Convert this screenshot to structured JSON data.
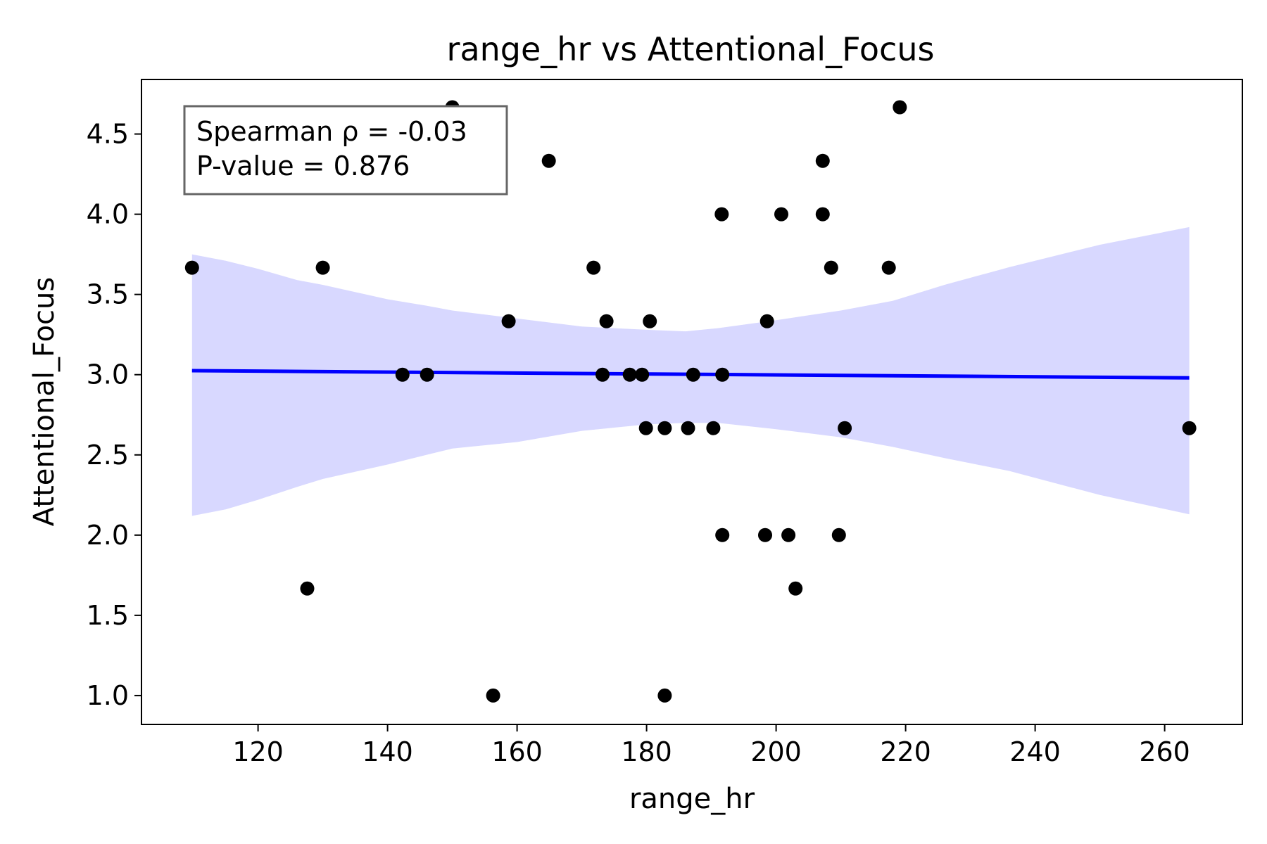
{
  "chart_data": {
    "type": "scatter",
    "title": "range_hr vs Attentional_Focus",
    "xlabel": "range_hr",
    "ylabel": "Attentional_Focus",
    "xlim": [
      102,
      272
    ],
    "ylim": [
      0.82,
      4.84
    ],
    "x_ticks": [
      120,
      140,
      160,
      180,
      200,
      220,
      240,
      260
    ],
    "y_ticks": [
      1.0,
      1.5,
      2.0,
      2.5,
      3.0,
      3.5,
      4.0,
      4.5
    ],
    "grid": false,
    "points": [
      {
        "x": 109.8,
        "y": 3.667
      },
      {
        "x": 130.0,
        "y": 3.667
      },
      {
        "x": 127.6,
        "y": 1.667
      },
      {
        "x": 142.3,
        "y": 3.0
      },
      {
        "x": 146.1,
        "y": 3.0
      },
      {
        "x": 150.0,
        "y": 4.667
      },
      {
        "x": 156.3,
        "y": 1.0
      },
      {
        "x": 158.7,
        "y": 3.333
      },
      {
        "x": 164.9,
        "y": 4.333
      },
      {
        "x": 171.8,
        "y": 3.667
      },
      {
        "x": 173.2,
        "y": 3.0
      },
      {
        "x": 173.8,
        "y": 3.333
      },
      {
        "x": 177.4,
        "y": 3.0
      },
      {
        "x": 179.3,
        "y": 3.0
      },
      {
        "x": 179.9,
        "y": 2.667
      },
      {
        "x": 180.5,
        "y": 3.333
      },
      {
        "x": 182.8,
        "y": 2.667
      },
      {
        "x": 182.8,
        "y": 1.0
      },
      {
        "x": 186.4,
        "y": 2.667
      },
      {
        "x": 187.2,
        "y": 3.0
      },
      {
        "x": 190.3,
        "y": 2.667
      },
      {
        "x": 191.6,
        "y": 4.0
      },
      {
        "x": 191.7,
        "y": 3.0
      },
      {
        "x": 191.7,
        "y": 2.0
      },
      {
        "x": 198.3,
        "y": 2.0
      },
      {
        "x": 198.6,
        "y": 3.333
      },
      {
        "x": 200.8,
        "y": 4.0
      },
      {
        "x": 201.9,
        "y": 2.0
      },
      {
        "x": 203.0,
        "y": 1.667
      },
      {
        "x": 207.2,
        "y": 4.333
      },
      {
        "x": 207.2,
        "y": 4.0
      },
      {
        "x": 208.5,
        "y": 3.667
      },
      {
        "x": 209.7,
        "y": 2.0
      },
      {
        "x": 210.6,
        "y": 2.667
      },
      {
        "x": 217.4,
        "y": 3.667
      },
      {
        "x": 219.1,
        "y": 4.667
      },
      {
        "x": 263.8,
        "y": 2.667
      }
    ],
    "regression": {
      "x": [
        109.8,
        263.8
      ],
      "y": [
        3.025,
        2.98
      ]
    },
    "confidence_band": {
      "x": [
        109.8,
        115,
        120,
        126,
        130,
        140,
        146,
        150,
        160,
        170,
        180,
        186,
        191,
        200,
        210,
        218,
        226,
        236,
        250,
        263.8
      ],
      "lower": [
        2.12,
        2.16,
        2.22,
        2.3,
        2.35,
        2.44,
        2.5,
        2.54,
        2.58,
        2.65,
        2.69,
        2.7,
        2.7,
        2.66,
        2.61,
        2.55,
        2.48,
        2.4,
        2.25,
        2.13
      ],
      "upper": [
        3.75,
        3.71,
        3.66,
        3.59,
        3.56,
        3.47,
        3.43,
        3.4,
        3.35,
        3.3,
        3.28,
        3.27,
        3.29,
        3.34,
        3.4,
        3.46,
        3.56,
        3.67,
        3.81,
        3.92
      ]
    },
    "colors": {
      "points": "#000000",
      "regression_line": "#0000ff",
      "confidence_band": "#d8d8ff",
      "annotation_border": "#666666"
    },
    "annotation_lines": [
      "Spearman ρ = -0.03",
      "P-value = 0.876"
    ],
    "annotation_placement": "top-left"
  }
}
